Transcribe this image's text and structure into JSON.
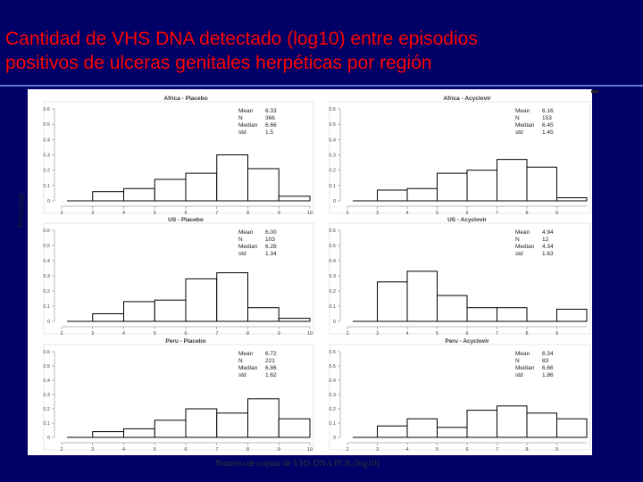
{
  "slide": {
    "title_line1": "Cantidad de VHS DNA detectado (log10) entre episodios",
    "title_line2": "positivos de ulceras genitales herpéticas por región",
    "ylabel": "Percentage",
    "xlabel": "Numero de copias de VHS DNA PCR (log10)",
    "colors": {
      "background": "#000066",
      "title": "#ff0000",
      "panel": "#ffffff",
      "bars": "#000000"
    }
  },
  "chart_data": [
    {
      "type": "bar",
      "title": "Africa - Placebo",
      "ylim": [
        0,
        0.6
      ],
      "xlim": [
        2,
        10
      ],
      "yticks": [
        "0",
        "0.1",
        "0.2",
        "0.3",
        "0.4",
        "0.5",
        "0.6"
      ],
      "xticks": [
        "2",
        "3",
        "4",
        "5",
        "6",
        "7",
        "8",
        "9",
        "10"
      ],
      "bins": [
        [
          3,
          4
        ],
        [
          4,
          5
        ],
        [
          5,
          6
        ],
        [
          6,
          7
        ],
        [
          7,
          8
        ],
        [
          8,
          9
        ],
        [
          9,
          10
        ]
      ],
      "values": [
        0.06,
        0.08,
        0.14,
        0.18,
        0.3,
        0.21,
        0.03
      ],
      "stats": {
        "Mean": "6.33",
        "N": "366",
        "Median": "6.66",
        "std": "1.5"
      }
    },
    {
      "type": "bar",
      "title": "Africa - Acyclovir",
      "ylim": [
        0,
        0.6
      ],
      "xlim": [
        2,
        10
      ],
      "yticks": [
        "0",
        "0.1",
        "0.2",
        "0.3",
        "0.4",
        "0.5",
        "0.6"
      ],
      "xticks": [
        "2",
        "3",
        "4",
        "5",
        "6",
        "7",
        "8",
        "9"
      ],
      "bins": [
        [
          3,
          4
        ],
        [
          4,
          5
        ],
        [
          5,
          6
        ],
        [
          6,
          7
        ],
        [
          7,
          8
        ],
        [
          8,
          9
        ],
        [
          9,
          10
        ]
      ],
      "values": [
        0.07,
        0.08,
        0.18,
        0.2,
        0.27,
        0.22,
        0.02
      ],
      "stats": {
        "Mean": "6.16",
        "N": "153",
        "Median": "6.45",
        "std": "1.45"
      }
    },
    {
      "type": "bar",
      "title": "US - Placebo",
      "ylim": [
        0,
        0.6
      ],
      "xlim": [
        2,
        10
      ],
      "yticks": [
        "0",
        "0.1",
        "0.2",
        "0.3",
        "0.4",
        "0.5",
        "0.6"
      ],
      "xticks": [
        "2",
        "3",
        "4",
        "5",
        "6",
        "7",
        "8",
        "9",
        "10"
      ],
      "bins": [
        [
          3,
          4
        ],
        [
          4,
          5
        ],
        [
          5,
          6
        ],
        [
          6,
          7
        ],
        [
          7,
          8
        ],
        [
          8,
          9
        ],
        [
          9,
          10
        ]
      ],
      "values": [
        0.05,
        0.13,
        0.14,
        0.28,
        0.32,
        0.09,
        0.02
      ],
      "stats": {
        "Mean": "6.00",
        "N": "103",
        "Median": "6.28",
        "std": "1.34"
      }
    },
    {
      "type": "bar",
      "title": "US - Acyclovir",
      "ylim": [
        0,
        0.6
      ],
      "xlim": [
        2,
        10
      ],
      "yticks": [
        "0",
        "0.1",
        "0.2",
        "0.3",
        "0.4",
        "0.5",
        "0.6"
      ],
      "xticks": [
        "2",
        "3",
        "4",
        "5",
        "6",
        "7",
        "8",
        "9"
      ],
      "bins": [
        [
          3,
          4
        ],
        [
          4,
          5
        ],
        [
          5,
          6
        ],
        [
          6,
          7
        ],
        [
          7,
          8
        ],
        [
          8,
          9
        ],
        [
          9,
          10
        ]
      ],
      "values": [
        0.26,
        0.33,
        0.17,
        0.09,
        0.09,
        0.0,
        0.08
      ],
      "stats": {
        "Mean": "4.94",
        "N": "12",
        "Median": "4.34",
        "std": "1.63"
      }
    },
    {
      "type": "bar",
      "title": "Peru - Placebo",
      "ylim": [
        0,
        0.6
      ],
      "xlim": [
        2,
        10
      ],
      "yticks": [
        "0",
        "0.1",
        "0.2",
        "0.3",
        "0.4",
        "0.5",
        "0.6"
      ],
      "xticks": [
        "2",
        "3",
        "4",
        "5",
        "6",
        "7",
        "8",
        "9",
        "10"
      ],
      "bins": [
        [
          3,
          4
        ],
        [
          4,
          5
        ],
        [
          5,
          6
        ],
        [
          6,
          7
        ],
        [
          7,
          8
        ],
        [
          8,
          9
        ],
        [
          9,
          10
        ]
      ],
      "values": [
        0.04,
        0.06,
        0.12,
        0.2,
        0.17,
        0.27,
        0.13
      ],
      "stats": {
        "Mean": "6.72",
        "N": "221",
        "Median": "6.86",
        "std": "1.62"
      }
    },
    {
      "type": "bar",
      "title": "Peru - Acyclovir",
      "ylim": [
        0,
        0.6
      ],
      "xlim": [
        2,
        10
      ],
      "yticks": [
        "0",
        "0.1",
        "0.2",
        "0.3",
        "0.4",
        "0.5",
        "0.6"
      ],
      "xticks": [
        "2",
        "3",
        "4",
        "5",
        "6",
        "7",
        "8",
        "9"
      ],
      "bins": [
        [
          3,
          4
        ],
        [
          4,
          5
        ],
        [
          5,
          6
        ],
        [
          6,
          7
        ],
        [
          7,
          8
        ],
        [
          8,
          9
        ],
        [
          9,
          10
        ]
      ],
      "values": [
        0.08,
        0.13,
        0.07,
        0.19,
        0.22,
        0.17,
        0.13
      ],
      "stats": {
        "Mean": "6.34",
        "N": "83",
        "Median": "6.66",
        "std": "1.86"
      }
    }
  ]
}
